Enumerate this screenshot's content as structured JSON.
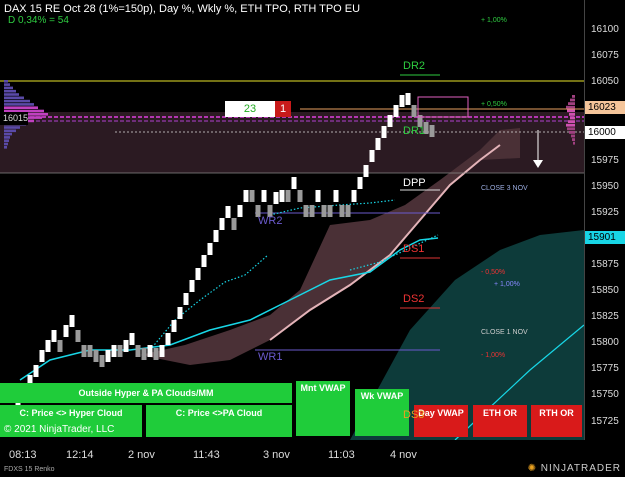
{
  "header": {
    "title": "DAX 15 RE Oct 28 (1%=150p), Day %, Wkly %, ETH TPO, RTH TPO EU",
    "subtitle": "D 0,34% = 54"
  },
  "price_axis": {
    "ticks": [
      "16100",
      "16075",
      "16050",
      "16025",
      "16000",
      "15975",
      "15950",
      "15925",
      "15900",
      "15875",
      "15850",
      "15825",
      "15800",
      "15775",
      "15750",
      "15725"
    ],
    "tag_last": "16023",
    "tag_current": "16000",
    "tag_cyan": "15901",
    "tag_left": "16015"
  },
  "time_axis": [
    "08:13",
    "12:14",
    "2 nov",
    "11:43",
    "3 nov",
    "11:03",
    "4 nov"
  ],
  "levels": {
    "dr2": "DR2",
    "dr1": "DR1",
    "dpp": "DPP",
    "ds1": "DS1",
    "ds2": "DS2",
    "wr2": "WR2",
    "wr1": "WR1",
    "ds3": "DS3"
  },
  "annotations": {
    "pct_top": "+ 1,00%",
    "pct_050": "+ 0,50%",
    "close3": "CLOSE 3 NOV",
    "neg050": "- 0,50%",
    "pos100": "+ 1,00%",
    "close1": "CLOSE 1 NOV",
    "neg100": "- 1,00%"
  },
  "order_box": {
    "qty": "23",
    "count": "1"
  },
  "buttons": {
    "outside": "Outside Hyper & PA Clouds/MM",
    "mnt_vwap": "Mnt VWAP",
    "wk_vwap": "Wk VWAP",
    "c_hyper": "C: Price <> Hyper Cloud",
    "c_pa": "C: Price <>PA Cloud",
    "day_vwap": "Day VWAP",
    "eth_or": "ETH OR",
    "rth_or": "RTH OR"
  },
  "footer": {
    "copyright": "© 2021 NinjaTrader, LLC",
    "instrument": "FDXS 15 Renko",
    "brand": "NINJATRADER"
  },
  "colors": {
    "bg": "#000000",
    "green_btn": "#1fcc3a",
    "red_btn": "#d91a1a",
    "teal_cloud": "#0d3b3a",
    "dark_purple": "#2b1a22",
    "cyan_tag": "#18d6e6"
  }
}
